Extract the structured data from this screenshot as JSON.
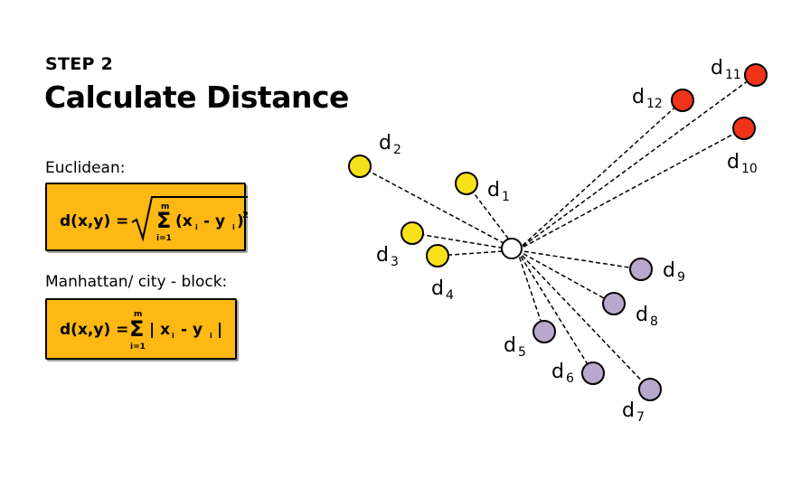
{
  "header": {
    "step": "STEP 2",
    "title": "Calculate Distance"
  },
  "euclidean": {
    "label": "Euclidean:",
    "lhs": "d(x,y) =",
    "sum_upper": "m",
    "sum_lower": "i=1",
    "term": "(x",
    "sub_x": "i",
    "minus": "- y",
    "sub_y": "i",
    "close": ")",
    "power": "2"
  },
  "manhattan": {
    "label": "Manhattan/ city - block:",
    "lhs": "d(x,y) =",
    "sum_upper": "m",
    "sum_lower": "i=1",
    "term": "| x",
    "sub_x": "i",
    "minus": "- y",
    "sub_y": "i",
    "close": "|"
  },
  "colors": {
    "formula_box": "#FDB813",
    "near_points": "#F7E11B",
    "mid_points": "#B9A8CE",
    "far_points": "#F0341A"
  },
  "points": [
    {
      "name": "d1",
      "base": "d",
      "sub": "1",
      "group": "near"
    },
    {
      "name": "d2",
      "base": "d",
      "sub": "2",
      "group": "near"
    },
    {
      "name": "d3",
      "base": "d",
      "sub": "3",
      "group": "near"
    },
    {
      "name": "d4",
      "base": "d",
      "sub": "4",
      "group": "near"
    },
    {
      "name": "d5",
      "base": "d",
      "sub": "5",
      "group": "mid"
    },
    {
      "name": "d6",
      "base": "d",
      "sub": "6",
      "group": "mid"
    },
    {
      "name": "d7",
      "base": "d",
      "sub": "7",
      "group": "mid"
    },
    {
      "name": "d8",
      "base": "d",
      "sub": "8",
      "group": "mid"
    },
    {
      "name": "d9",
      "base": "d",
      "sub": "9",
      "group": "mid"
    },
    {
      "name": "d10",
      "base": "d",
      "sub": "10",
      "group": "far"
    },
    {
      "name": "d11",
      "base": "d",
      "sub": "11",
      "group": "far"
    },
    {
      "name": "d12",
      "base": "d",
      "sub": "12",
      "group": "far"
    }
  ]
}
